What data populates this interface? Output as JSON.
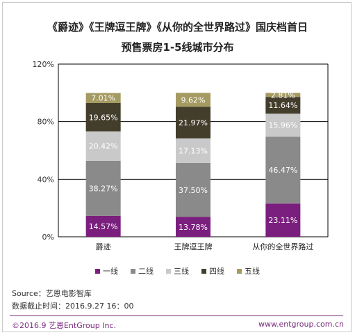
{
  "chart_data": {
    "type": "bar",
    "stacked": true,
    "title": "《爵迹》《王牌逗王牌》《从你的全世界路过》国庆档首日",
    "subtitle": "预售票房1-5线城市分布",
    "categories": [
      "爵迹",
      "王牌逗王牌",
      "从你的全世界路过"
    ],
    "series": [
      {
        "name": "一线",
        "color": "#7b1f7f",
        "values": [
          14.57,
          13.78,
          23.11
        ],
        "labels": [
          "14.57%",
          "13.78%",
          "23.11%"
        ]
      },
      {
        "name": "二线",
        "color": "#8a8a8a",
        "values": [
          38.27,
          37.5,
          46.47
        ],
        "labels": [
          "38.27%",
          "37.50%",
          "46.47%"
        ]
      },
      {
        "name": "三线",
        "color": "#c9c9c9",
        "values": [
          20.42,
          17.13,
          15.96
        ],
        "labels": [
          "20.42%",
          "17.13%",
          "15.96%"
        ]
      },
      {
        "name": "四线",
        "color": "#433d2c",
        "values": [
          19.65,
          21.97,
          11.64
        ],
        "labels": [
          "19.65%",
          "21.97%",
          "11.64%"
        ]
      },
      {
        "name": "五线",
        "color": "#a49a62",
        "values": [
          7.01,
          9.62,
          2.81
        ],
        "labels": [
          "7.01%",
          "9.62%",
          "2.81%"
        ]
      }
    ],
    "yticks": [
      "0%",
      "40%",
      "80%",
      "120%"
    ],
    "ylim": [
      0,
      120
    ],
    "grid": true,
    "legend_position": "bottom"
  },
  "source": "Source：艺恩电影智库",
  "cutoff": "数据截止时间：2016.9.27  16：00",
  "copyright": "©2016.9 艺恩EntGroup Inc.",
  "website": "www.entgroup.com.cn"
}
